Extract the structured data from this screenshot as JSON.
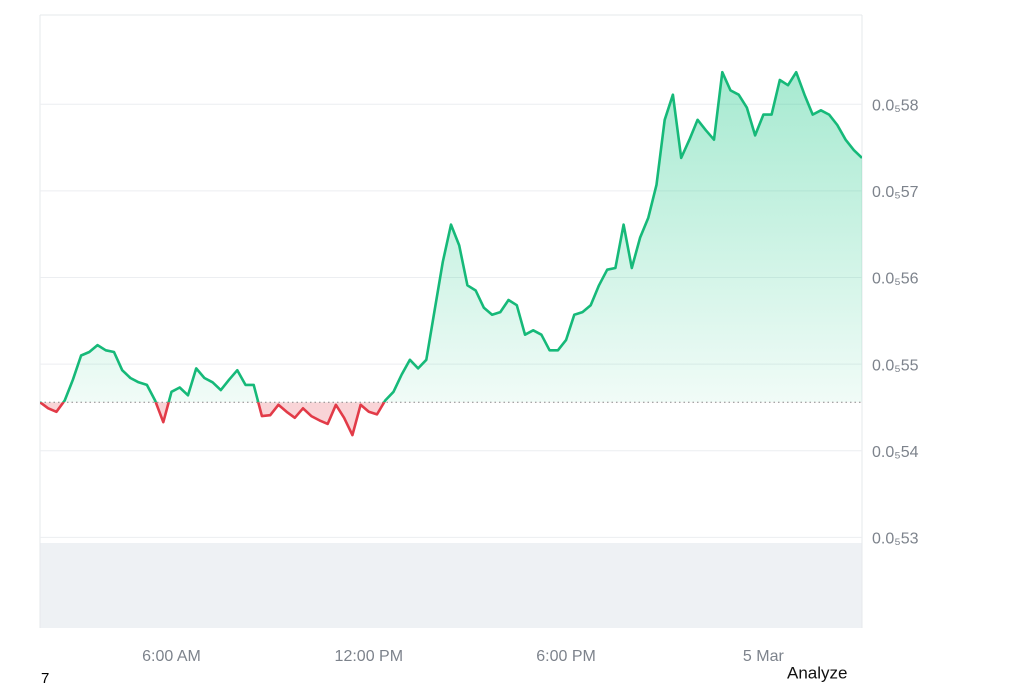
{
  "chart_data": {
    "type": "line",
    "values": [
      5.456e-06,
      5.449e-06,
      5.445e-06,
      5.458e-06,
      5.482e-06,
      5.51e-06,
      5.514e-06,
      5.522e-06,
      5.516e-06,
      5.514e-06,
      5.493e-06,
      5.484e-06,
      5.479e-06,
      5.476e-06,
      5.458e-06,
      5.433e-06,
      5.468e-06,
      5.473e-06,
      5.464e-06,
      5.495e-06,
      5.484e-06,
      5.479e-06,
      5.47e-06,
      5.482e-06,
      5.493e-06,
      5.476e-06,
      5.476e-06,
      5.44e-06,
      5.441e-06,
      5.453e-06,
      5.445e-06,
      5.438e-06,
      5.449e-06,
      5.44e-06,
      5.435e-06,
      5.431e-06,
      5.453e-06,
      5.438e-06,
      5.418e-06,
      5.453e-06,
      5.445e-06,
      5.442e-06,
      5.458e-06,
      5.468e-06,
      5.488e-06,
      5.505e-06,
      5.495e-06,
      5.505e-06,
      5.562e-06,
      5.618e-06,
      5.661e-06,
      5.637e-06,
      5.591e-06,
      5.585e-06,
      5.565e-06,
      5.557e-06,
      5.56e-06,
      5.574e-06,
      5.568e-06,
      5.534e-06,
      5.539e-06,
      5.534e-06,
      5.516e-06,
      5.516e-06,
      5.528e-06,
      5.557e-06,
      5.56e-06,
      5.568e-06,
      5.591e-06,
      5.609e-06,
      5.611e-06,
      5.661e-06,
      5.611e-06,
      5.646e-06,
      5.669e-06,
      5.707e-06,
      5.782e-06,
      5.811e-06,
      5.738e-06,
      5.759e-06,
      5.782e-06,
      5.77e-06,
      5.759e-06,
      5.837e-06,
      5.816e-06,
      5.811e-06,
      5.796e-06,
      5.764e-06,
      5.788e-06,
      5.788e-06,
      5.828e-06,
      5.822e-06,
      5.837e-06,
      5.811e-06,
      5.788e-06,
      5.793e-06,
      5.788e-06,
      5.776e-06,
      5.759e-06,
      5.747e-06,
      5.738e-06
    ],
    "baseline": 5.456e-06,
    "up_color": "#16b979",
    "down_color": "#e23b48",
    "xlim": [
      0,
      100
    ],
    "xticks": [
      {
        "value": 16,
        "label": "6:00 AM"
      },
      {
        "value": 40,
        "label": "12:00 PM"
      },
      {
        "value": 64,
        "label": "6:00 PM"
      },
      {
        "value": 88,
        "label": "5 Mar"
      }
    ],
    "ylim": [
      5.2e-06,
      5.9e-06
    ],
    "yticks": [
      {
        "value": 5.3e-06,
        "label": "0.0₅53"
      },
      {
        "value": 5.4e-06,
        "label": "0.0₅54"
      },
      {
        "value": 5.5e-06,
        "label": "0.0₅55"
      },
      {
        "value": 5.6e-06,
        "label": "0.0₅56"
      },
      {
        "value": 5.7e-06,
        "label": "0.0₅57"
      },
      {
        "value": 5.8e-06,
        "label": "0.0₅58"
      }
    ],
    "grid": true
  },
  "footer": {
    "left": "7",
    "button": "Analyze"
  }
}
